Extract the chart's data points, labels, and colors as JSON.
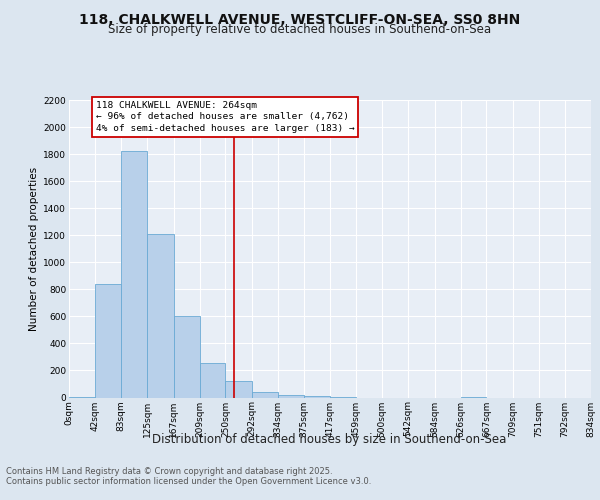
{
  "title1": "118, CHALKWELL AVENUE, WESTCLIFF-ON-SEA, SS0 8HN",
  "title2": "Size of property relative to detached houses in Southend-on-Sea",
  "xlabel": "Distribution of detached houses by size in Southend-on-Sea",
  "ylabel": "Number of detached properties",
  "bin_edges": [
    0,
    42,
    83,
    125,
    167,
    209,
    250,
    292,
    334,
    375,
    417,
    459,
    500,
    542,
    584,
    626,
    667,
    709,
    751,
    792,
    834
  ],
  "bar_heights": [
    3,
    843,
    1820,
    1210,
    600,
    258,
    125,
    40,
    20,
    8,
    3,
    0,
    0,
    0,
    0,
    3,
    0,
    0,
    0,
    0
  ],
  "bar_color": "#b8d0ea",
  "bar_edge_color": "#6aaad4",
  "property_size": 264,
  "vline_color": "#cc0000",
  "annotation_title": "118 CHALKWELL AVENUE: 264sqm",
  "annotation_line1": "← 96% of detached houses are smaller (4,762)",
  "annotation_line2": "4% of semi-detached houses are larger (183) →",
  "annotation_box_color": "#cc0000",
  "ylim_max": 2200,
  "yticks": [
    0,
    200,
    400,
    600,
    800,
    1000,
    1200,
    1400,
    1600,
    1800,
    2000,
    2200
  ],
  "bg_color": "#dce6f0",
  "plot_bg_color": "#e8eef6",
  "grid_color": "#ffffff",
  "footer_line1": "Contains HM Land Registry data © Crown copyright and database right 2025.",
  "footer_line2": "Contains public sector information licensed under the Open Government Licence v3.0.",
  "title1_fontsize": 10,
  "title2_fontsize": 8.5,
  "xlabel_fontsize": 8.5,
  "ylabel_fontsize": 7.5,
  "tick_fontsize": 6.5,
  "annotation_fontsize": 6.8,
  "footer_fontsize": 6.0
}
